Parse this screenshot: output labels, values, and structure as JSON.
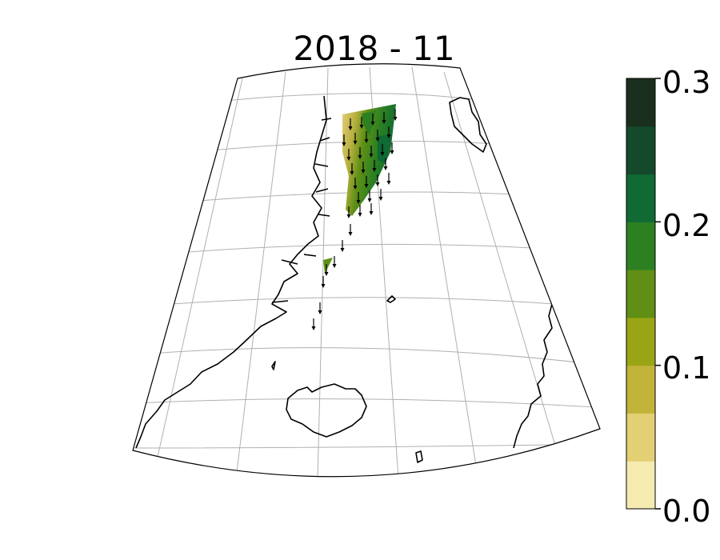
{
  "title": "2018 - 11",
  "colorbar": {
    "ticks": [
      "0.0",
      "0.1",
      "0.2",
      "0.3"
    ],
    "min": 0.0,
    "max": 0.3,
    "colors": [
      "#f5ebb0",
      "#e3cf74",
      "#c2b33a",
      "#9aa515",
      "#5f9015",
      "#2d8022",
      "#0f6a33",
      "#144a2b",
      "#1a2f1d"
    ]
  },
  "map": {
    "projection": "conic",
    "gridlines": true,
    "arrow_direction": "south",
    "field_colors": [
      "#d9c26a",
      "#5f9015",
      "#2d8022",
      "#0f6a33"
    ]
  }
}
